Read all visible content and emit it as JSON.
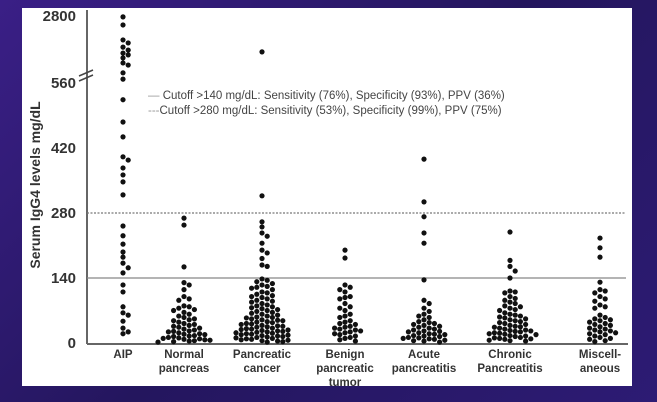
{
  "chart_data": {
    "type": "scatter",
    "ylabel": "Serum IgG4 levels mg/dL",
    "yticks": [
      0,
      140,
      280,
      420,
      560,
      2800
    ],
    "ylim": [
      0,
      2800
    ],
    "axis_break": [
      560,
      2800
    ],
    "grid": false,
    "categories": [
      "AIP",
      "Normal pancreas",
      "Pancreatic cancer",
      "Benign pancreatic tumor",
      "Acute pancreatitis",
      "Chronic Pancreatitis",
      "Miscell-aneous"
    ],
    "category_lines": [
      [
        "AIP"
      ],
      [
        "Normal",
        "pancreas"
      ],
      [
        "Pancreatic",
        "cancer"
      ],
      [
        "Benign",
        "pancreatic",
        "tumor"
      ],
      [
        "Acute",
        "pancreatitis"
      ],
      [
        "Chronic",
        "Pancreatitis"
      ],
      [
        "Miscell-",
        "aneous"
      ]
    ],
    "reference_lines": [
      {
        "value": 140,
        "style": "solid",
        "label": "Cutoff >140 mg/dL: Sensitivity (76%), Specificity (93%), PPV (36%)"
      },
      {
        "value": 280,
        "style": "dotted",
        "label": "Cutoff >280 mg/dL: Sensitivity (53%), Specificity (99%), PPV (75%)"
      }
    ],
    "legend_position": "top-center",
    "point_color": "#111111",
    "series": [
      {
        "values": [
          2770,
          2500,
          2000,
          1900,
          1760,
          1660,
          1560,
          1500,
          1400,
          1230,
          1160,
          900,
          690,
          524,
          476,
          444,
          401,
          394,
          377,
          362,
          347,
          319,
          252,
          231,
          213,
          196,
          185,
          172,
          162,
          151,
          125,
          110,
          78,
          65,
          60,
          47,
          32,
          24,
          20
        ]
      },
      {
        "values": [
          269,
          254,
          164,
          130,
          125,
          115,
          100,
          95,
          92,
          80,
          78,
          75,
          72,
          70,
          66,
          62,
          58,
          55,
          52,
          50,
          48,
          45,
          42,
          40,
          38,
          36,
          34,
          32,
          30,
          28,
          26,
          25,
          24,
          22,
          20,
          19,
          18,
          16,
          15,
          14,
          12,
          11,
          10,
          9,
          8,
          7,
          6,
          5,
          4,
          3,
          2
        ]
      },
      {
        "values": [
          1600,
          317,
          261,
          250,
          237,
          230,
          215,
          200,
          194,
          182,
          168,
          165,
          138,
          135,
          132,
          128,
          125,
          122,
          120,
          118,
          115,
          110,
          108,
          105,
          102,
          100,
          98,
          95,
          92,
          90,
          88,
          85,
          82,
          80,
          78,
          76,
          74,
          72,
          70,
          68,
          66,
          64,
          62,
          60,
          58,
          56,
          55,
          54,
          52,
          50,
          49,
          48,
          46,
          45,
          44,
          42,
          41,
          40,
          38,
          37,
          36,
          35,
          34,
          32,
          31,
          30,
          29,
          28,
          27,
          26,
          25,
          24,
          23,
          22,
          21,
          20,
          19,
          18,
          17,
          16,
          15,
          14,
          13,
          12,
          11,
          10,
          9,
          8,
          7,
          6,
          5,
          4,
          3,
          2
        ]
      },
      {
        "values": [
          200,
          183,
          125,
          120,
          115,
          110,
          100,
          98,
          95,
          85,
          78,
          75,
          70,
          62,
          58,
          55,
          48,
          45,
          42,
          40,
          36,
          34,
          32,
          30,
          28,
          26,
          24,
          22,
          20,
          18,
          15,
          12,
          10,
          7,
          4
        ]
      },
      {
        "values": [
          396,
          304,
          272,
          237,
          215,
          136,
          92,
          85,
          75,
          68,
          62,
          58,
          55,
          50,
          46,
          44,
          42,
          40,
          38,
          36,
          34,
          32,
          30,
          28,
          26,
          25,
          24,
          22,
          20,
          19,
          18,
          16,
          15,
          14,
          12,
          11,
          10,
          9,
          8,
          6,
          5,
          4,
          2
        ]
      },
      {
        "values": [
          239,
          178,
          165,
          155,
          140,
          112,
          110,
          108,
          100,
          96,
          92,
          88,
          85,
          80,
          78,
          75,
          72,
          70,
          65,
          62,
          60,
          58,
          56,
          54,
          52,
          50,
          48,
          46,
          44,
          42,
          40,
          38,
          36,
          35,
          34,
          32,
          30,
          28,
          27,
          26,
          25,
          24,
          22,
          21,
          20,
          19,
          18,
          16,
          15,
          14,
          12,
          11,
          10,
          9,
          8,
          6,
          5,
          4
        ]
      },
      {
        "values": [
          226,
          205,
          185,
          131,
          115,
          112,
          108,
          100,
          95,
          90,
          82,
          78,
          75,
          60,
          55,
          52,
          50,
          48,
          45,
          42,
          40,
          38,
          35,
          32,
          30,
          28,
          26,
          24,
          22,
          20,
          18,
          15,
          12,
          10,
          8,
          5,
          3
        ]
      }
    ]
  }
}
